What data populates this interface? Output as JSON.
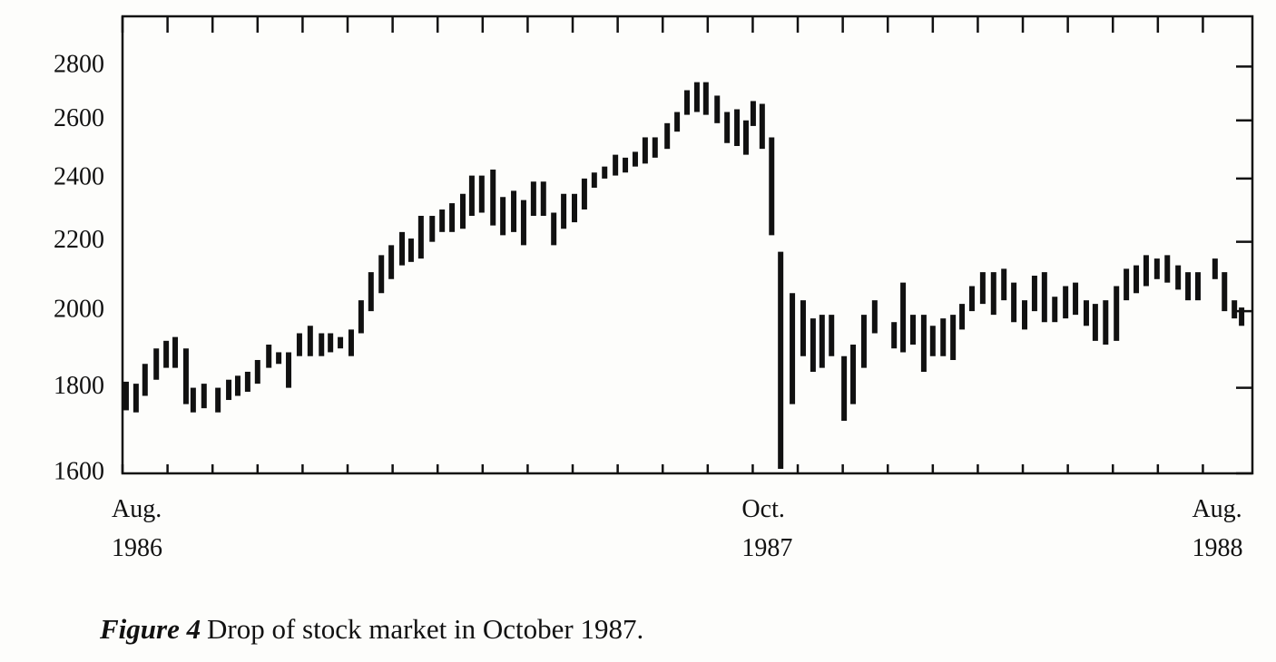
{
  "chart_data": {
    "type": "range-bar",
    "x": [
      0.08,
      0.3,
      0.5,
      0.75,
      0.97,
      1.17,
      1.41,
      1.57,
      1.81,
      2.12,
      2.36,
      2.56,
      2.78,
      3.0,
      3.25,
      3.47,
      3.69,
      3.93,
      4.17,
      4.42,
      4.62,
      4.84,
      5.08,
      5.3,
      5.52,
      5.75,
      5.97,
      6.21,
      6.41,
      6.63,
      6.88,
      7.1,
      7.32,
      7.56,
      7.76,
      7.98,
      8.23,
      8.45,
      8.69,
      8.91,
      9.13,
      9.35,
      9.58,
      9.8,
      10.04,
      10.26,
      10.48,
      10.71,
      10.95,
      11.17,
      11.39,
      11.61,
      11.83,
      12.1,
      12.32,
      12.54,
      12.76,
      12.96,
      13.21,
      13.43,
      13.65,
      13.85,
      14.01,
      14.21,
      14.42,
      14.62,
      14.88,
      15.12,
      15.34,
      15.54,
      15.75,
      16.03,
      16.23,
      16.47,
      16.71,
      17.14,
      17.34,
      17.56,
      17.8,
      18.0,
      18.23,
      18.45,
      18.65,
      18.87,
      19.11,
      19.35,
      19.58,
      19.8,
      20.04,
      20.26,
      20.48,
      20.71,
      20.95,
      21.17,
      21.41,
      21.61,
      21.84,
      22.08,
      22.3,
      22.52,
      22.74,
      22.98,
      23.21,
      23.45,
      23.67,
      23.89,
      24.27,
      24.48,
      24.7,
      24.86
    ],
    "low": [
      1745,
      1740,
      1780,
      1820,
      1850,
      1850,
      1760,
      1740,
      1750,
      1740,
      1770,
      1780,
      1790,
      1810,
      1850,
      1860,
      1800,
      1880,
      1880,
      1880,
      1890,
      1900,
      1880,
      1940,
      2000,
      2050,
      2090,
      2130,
      2140,
      2150,
      2200,
      2230,
      2230,
      2240,
      2280,
      2290,
      2250,
      2220,
      2230,
      2190,
      2280,
      2280,
      2190,
      2240,
      2260,
      2300,
      2370,
      2400,
      2410,
      2420,
      2440,
      2450,
      2470,
      2500,
      2560,
      2620,
      2630,
      2620,
      2590,
      2520,
      2510,
      2480,
      2580,
      2500,
      2220,
      1610,
      1760,
      1880,
      1840,
      1850,
      1880,
      1720,
      1760,
      1850,
      1940,
      1900,
      1890,
      1910,
      1840,
      1880,
      1880,
      1870,
      1950,
      2000,
      2020,
      1990,
      2030,
      1970,
      1950,
      2000,
      1970,
      1970,
      1980,
      1990,
      1960,
      1920,
      1910,
      1920,
      2030,
      2050,
      2070,
      2090,
      2080,
      2060,
      2030,
      2030,
      2090,
      2000,
      1980,
      1960
    ],
    "high": [
      1815,
      1810,
      1860,
      1900,
      1920,
      1930,
      1900,
      1800,
      1810,
      1800,
      1820,
      1830,
      1840,
      1870,
      1910,
      1890,
      1890,
      1940,
      1960,
      1940,
      1940,
      1930,
      1950,
      2030,
      2110,
      2160,
      2190,
      2230,
      2210,
      2280,
      2280,
      2300,
      2320,
      2350,
      2410,
      2410,
      2430,
      2340,
      2360,
      2330,
      2390,
      2390,
      2290,
      2350,
      2350,
      2400,
      2420,
      2440,
      2480,
      2470,
      2490,
      2540,
      2540,
      2590,
      2630,
      2710,
      2740,
      2740,
      2690,
      2630,
      2640,
      2600,
      2670,
      2660,
      2540,
      2170,
      2050,
      2030,
      1980,
      1990,
      1990,
      1880,
      1910,
      1990,
      2030,
      1970,
      2080,
      1990,
      1990,
      1960,
      1980,
      1990,
      2020,
      2070,
      2110,
      2110,
      2120,
      2080,
      2030,
      2100,
      2110,
      2040,
      2070,
      2080,
      2030,
      2020,
      2030,
      2070,
      2120,
      2130,
      2160,
      2150,
      2160,
      2130,
      2110,
      2110,
      2150,
      2110,
      2030,
      2010
    ],
    "color": "#111111",
    "xlim": [
      0,
      25.1
    ],
    "xticks": [
      {
        "value": 0,
        "label": "Aug. 1986"
      },
      1,
      2,
      3,
      4,
      5,
      6,
      7,
      8,
      9,
      10,
      11,
      12,
      13,
      {
        "value": 14,
        "label": "Oct. 1987"
      },
      15,
      16,
      17,
      18,
      19,
      20,
      21,
      22,
      23,
      {
        "value": 24,
        "label": "Aug. 1988"
      }
    ],
    "ylim": [
      1600,
      3000
    ],
    "yticks": [
      1600,
      1800,
      2000,
      2200,
      2400,
      2600,
      2800
    ],
    "yscale": "log"
  },
  "figure": {
    "label": "Figure 4",
    "caption": "Drop of stock market in October 1987."
  }
}
